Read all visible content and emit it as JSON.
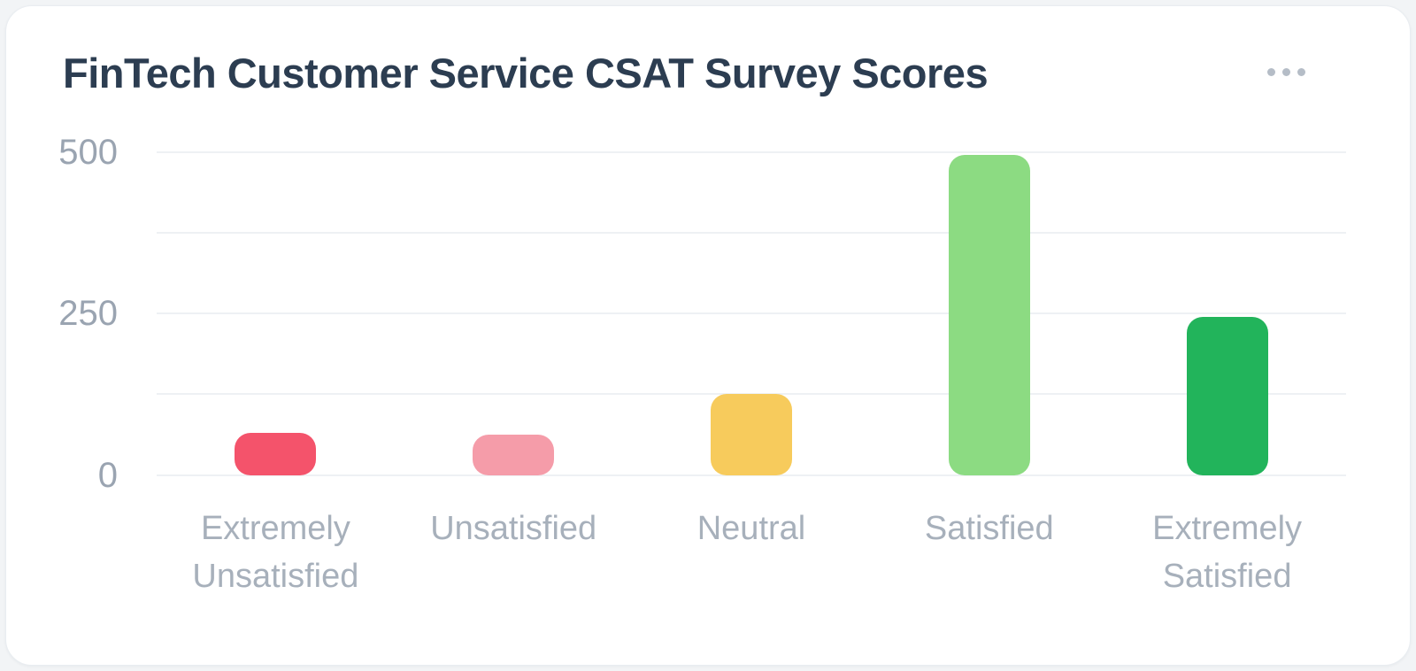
{
  "card": {
    "title": "FinTech Customer Service CSAT Survey Scores",
    "menu_icon": "ellipsis-icon"
  },
  "colors": {
    "card_background": "#ffffff",
    "page_background": "#f2f4f6",
    "title_text": "#2c3d51",
    "axis_text": "#9aa4b1",
    "category_text": "#a7b0bb",
    "gridline": "#eef1f4",
    "menu_dots": "#b5bdc7"
  },
  "chart_data": {
    "type": "bar",
    "title": "FinTech Customer Service CSAT Survey Scores",
    "categories": [
      "Extremely Unsatisfied",
      "Unsatisfied",
      "Neutral",
      "Satisfied",
      "Extremely Satisfied"
    ],
    "values": [
      65,
      62,
      125,
      495,
      245
    ],
    "colors": [
      "#f4536b",
      "#f59ca9",
      "#f7cb5c",
      "#8cdb82",
      "#22b45b"
    ],
    "xlabel": "",
    "ylabel": "",
    "ylim": [
      0,
      500
    ],
    "yticks": [
      0,
      250,
      500
    ],
    "gridline_step": 125,
    "grid": true,
    "legend": false
  }
}
